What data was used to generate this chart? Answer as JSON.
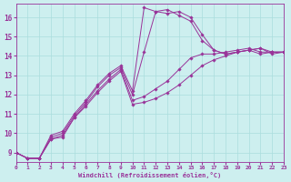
{
  "xlabel": "Windchill (Refroidissement éolien,°C)",
  "xlim": [
    0,
    23
  ],
  "ylim": [
    8.5,
    16.7
  ],
  "xticks": [
    0,
    1,
    2,
    3,
    4,
    5,
    6,
    7,
    8,
    9,
    10,
    11,
    12,
    13,
    14,
    15,
    16,
    17,
    18,
    19,
    20,
    21,
    22,
    23
  ],
  "yticks": [
    9,
    10,
    11,
    12,
    13,
    14,
    15,
    16
  ],
  "bg_color": "#cdefef",
  "line_color": "#993399",
  "grid_color": "#aadddd",
  "curves": [
    [
      9.0,
      8.7,
      8.7,
      9.7,
      9.8,
      10.8,
      11.4,
      12.1,
      12.7,
      13.2,
      11.5,
      11.6,
      11.8,
      12.1,
      12.5,
      13.0,
      13.5,
      13.8,
      14.0,
      14.2,
      14.3,
      14.1,
      14.2,
      14.2
    ],
    [
      9.0,
      8.7,
      8.7,
      9.7,
      9.9,
      10.8,
      11.5,
      12.2,
      12.8,
      13.3,
      11.7,
      11.9,
      12.3,
      12.7,
      13.3,
      13.9,
      14.1,
      14.1,
      14.2,
      14.3,
      14.4,
      14.2,
      14.2,
      14.2
    ],
    [
      9.0,
      8.7,
      8.7,
      9.8,
      10.0,
      10.9,
      11.6,
      12.4,
      13.0,
      13.4,
      12.0,
      14.2,
      16.3,
      16.2,
      16.3,
      16.0,
      15.1,
      14.3,
      14.1,
      14.2,
      14.3,
      14.4,
      14.2,
      14.2
    ],
    [
      9.0,
      8.7,
      8.7,
      9.9,
      10.1,
      11.0,
      11.7,
      12.5,
      13.1,
      13.5,
      12.2,
      16.5,
      16.3,
      16.4,
      16.1,
      15.8,
      14.8,
      14.3,
      14.1,
      14.2,
      14.3,
      14.4,
      14.1,
      14.2
    ]
  ]
}
